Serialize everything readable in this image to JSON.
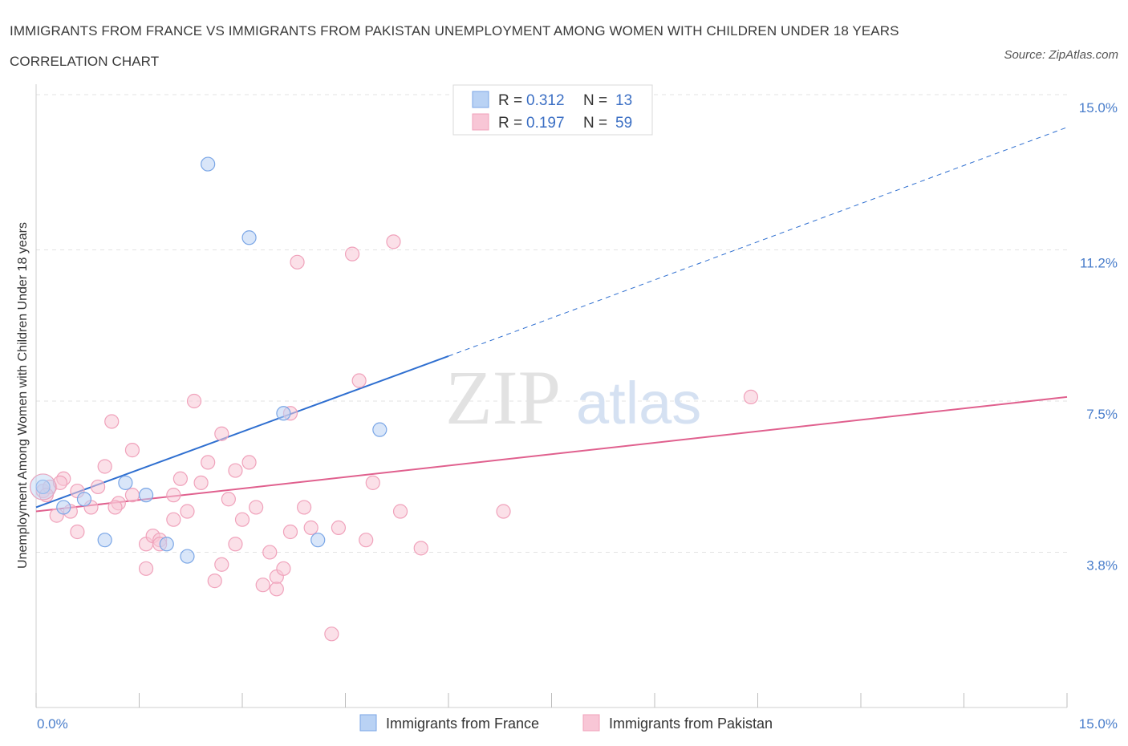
{
  "title": "IMMIGRANTS FROM FRANCE VS IMMIGRANTS FROM PAKISTAN UNEMPLOYMENT AMONG WOMEN WITH CHILDREN UNDER 18 YEARS CORRELATION CHART",
  "source": "Source: ZipAtlas.com",
  "watermark": {
    "zip": "ZIP",
    "atlas": "atlas"
  },
  "chart_data": {
    "type": "scatter",
    "title": "IMMIGRANTS FROM FRANCE VS IMMIGRANTS FROM PAKISTAN UNEMPLOYMENT AMONG WOMEN WITH CHILDREN UNDER 18 YEARS CORRELATION CHART",
    "xlabel": "",
    "ylabel": "Unemployment Among Women with Children Under 18 years",
    "xlim": [
      0,
      15
    ],
    "ylim": [
      0,
      15
    ],
    "x_tick_labels": [
      "0.0%",
      "15.0%"
    ],
    "y_ticks": [
      3.8,
      7.5,
      11.2,
      15.0
    ],
    "y_tick_labels": [
      "3.8%",
      "7.5%",
      "11.2%",
      "15.0%"
    ],
    "grid": true,
    "legend": {
      "placement": "top-center",
      "entries": [
        {
          "r_label": "R =",
          "r_value": "0.312",
          "n_label": "N =",
          "n_value": "13"
        },
        {
          "r_label": "R =",
          "r_value": "0.197",
          "n_label": "N =",
          "n_value": "59"
        }
      ]
    },
    "series": [
      {
        "name": "Immigrants from France",
        "color": "#7aa6e6",
        "fill": "#b9d2f4",
        "line_color": "#2f6fd0",
        "points": [
          [
            0.1,
            5.4
          ],
          [
            0.4,
            4.9
          ],
          [
            0.7,
            5.1
          ],
          [
            1.0,
            4.1
          ],
          [
            1.3,
            5.5
          ],
          [
            1.6,
            5.2
          ],
          [
            1.9,
            4.0
          ],
          [
            2.2,
            3.7
          ],
          [
            2.5,
            13.3
          ],
          [
            3.1,
            11.5
          ],
          [
            3.6,
            7.2
          ],
          [
            4.1,
            4.1
          ],
          [
            5.0,
            6.8
          ]
        ],
        "trend": {
          "x0": 0,
          "y0": 4.9,
          "x1": 6.0,
          "y1": 8.6,
          "dash_to_x": 15,
          "dash_to_y": 14.2
        }
      },
      {
        "name": "Immigrants from Pakistan",
        "color": "#f0a2bb",
        "fill": "#f8c6d6",
        "line_color": "#e0608e",
        "points": [
          [
            0.1,
            5.3
          ],
          [
            0.2,
            5.4
          ],
          [
            0.3,
            4.7
          ],
          [
            0.4,
            5.6
          ],
          [
            0.5,
            4.8
          ],
          [
            0.6,
            4.3
          ],
          [
            0.6,
            5.3
          ],
          [
            0.8,
            4.9
          ],
          [
            0.9,
            5.4
          ],
          [
            1.0,
            5.9
          ],
          [
            1.1,
            7.0
          ],
          [
            1.2,
            5.0
          ],
          [
            1.4,
            6.3
          ],
          [
            1.4,
            5.2
          ],
          [
            1.6,
            4.0
          ],
          [
            1.6,
            3.4
          ],
          [
            1.7,
            4.2
          ],
          [
            1.8,
            4.1
          ],
          [
            1.8,
            4.0
          ],
          [
            2.0,
            4.6
          ],
          [
            2.0,
            5.2
          ],
          [
            2.1,
            5.6
          ],
          [
            2.2,
            4.8
          ],
          [
            2.3,
            7.5
          ],
          [
            2.4,
            5.5
          ],
          [
            2.5,
            6.0
          ],
          [
            2.6,
            3.1
          ],
          [
            2.7,
            3.5
          ],
          [
            2.7,
            6.7
          ],
          [
            2.8,
            5.1
          ],
          [
            2.9,
            5.8
          ],
          [
            3.0,
            4.6
          ],
          [
            3.1,
            6.0
          ],
          [
            3.2,
            4.9
          ],
          [
            3.3,
            3.0
          ],
          [
            3.4,
            3.8
          ],
          [
            3.5,
            3.2
          ],
          [
            3.5,
            2.9
          ],
          [
            3.6,
            3.4
          ],
          [
            3.7,
            4.3
          ],
          [
            3.7,
            7.2
          ],
          [
            3.8,
            10.9
          ],
          [
            3.9,
            4.9
          ],
          [
            4.0,
            4.4
          ],
          [
            4.3,
            1.8
          ],
          [
            4.4,
            4.4
          ],
          [
            4.6,
            11.1
          ],
          [
            4.7,
            8.0
          ],
          [
            4.8,
            4.1
          ],
          [
            4.9,
            5.5
          ],
          [
            5.2,
            11.4
          ],
          [
            5.3,
            4.8
          ],
          [
            5.6,
            3.9
          ],
          [
            6.8,
            4.8
          ],
          [
            10.4,
            7.6
          ],
          [
            0.15,
            5.2
          ],
          [
            0.35,
            5.5
          ],
          [
            1.15,
            4.9
          ],
          [
            2.9,
            4.0
          ]
        ],
        "trend": {
          "x0": 0,
          "y0": 4.8,
          "x1": 15,
          "y1": 7.6
        }
      }
    ]
  }
}
